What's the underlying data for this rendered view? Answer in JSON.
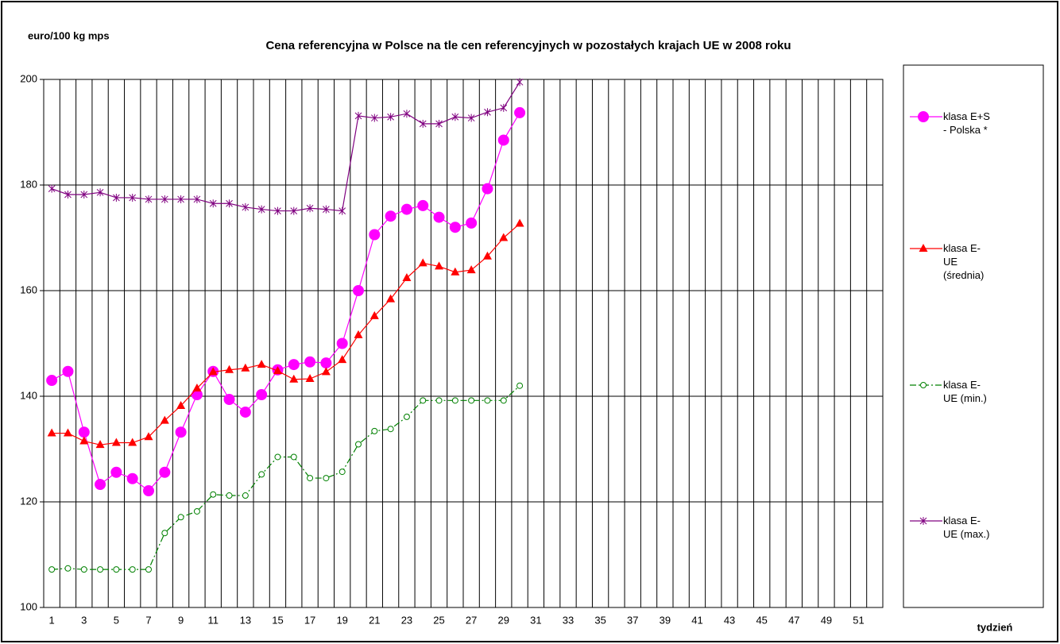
{
  "chart_data": {
    "type": "line",
    "title": "Cena referencyjna w Polsce na tle cen referencyjnych w pozostałych krajach UE w 2008 roku",
    "y_label": "euro/100 kg mps",
    "x_label": "tydzień",
    "categories": [
      1,
      null,
      3,
      null,
      5,
      null,
      7,
      null,
      9,
      null,
      11,
      null,
      13,
      null,
      15,
      null,
      17,
      null,
      19,
      null,
      21,
      null,
      23,
      null,
      25,
      null,
      27,
      null,
      29,
      null,
      31,
      null,
      33,
      null,
      35,
      null,
      37,
      null,
      39,
      null,
      41,
      null,
      43,
      null,
      45,
      null,
      47,
      null,
      49,
      null,
      51,
      null
    ],
    "ylim": [
      100,
      200
    ],
    "yticks": [
      100,
      120,
      140,
      160,
      180,
      200
    ],
    "grid": true,
    "legend": "right",
    "series": [
      {
        "name": "klasa E+S - Polska *",
        "color": "#ff00ff",
        "marker": "circle",
        "values": [
          143,
          144.7,
          133.2,
          123.3,
          125.6,
          124.4,
          122.1,
          125.6,
          133.2,
          140.3,
          144.7,
          139.4,
          137,
          140.3,
          145,
          146,
          146.5,
          146.3,
          150,
          160,
          170.6,
          174.1,
          175.4,
          176.1,
          173.9,
          172,
          172.8,
          179.3,
          188.5,
          193.7,
          null,
          null,
          null,
          null,
          null,
          null,
          null,
          null,
          null,
          null,
          null,
          null,
          null,
          null,
          null,
          null,
          null,
          null,
          null,
          null,
          null,
          null
        ]
      },
      {
        "name": "klasa E- UE (średnia)",
        "color": "#ff0000",
        "marker": "triangle",
        "values": [
          133,
          133,
          131.5,
          130.8,
          131.2,
          131.2,
          132.3,
          135.4,
          138.2,
          141.5,
          144.6,
          145,
          145.3,
          146,
          144.8,
          143.2,
          143.3,
          144.6,
          146.9,
          151.6,
          155.2,
          158.4,
          162.4,
          165.2,
          164.6,
          163.5,
          163.9,
          166.5,
          170,
          172.7,
          null,
          null,
          null,
          null,
          null,
          null,
          null,
          null,
          null,
          null,
          null,
          null,
          null,
          null,
          null,
          null,
          null,
          null,
          null,
          null,
          null,
          null
        ]
      },
      {
        "name": "klasa E- UE (min.)",
        "color": "#008000",
        "marker": "open-circle",
        "dash": "dash-dot",
        "values": [
          107.2,
          107.4,
          107.2,
          107.2,
          107.2,
          107.2,
          107.2,
          114.1,
          117.1,
          118.2,
          121.4,
          121.2,
          121.2,
          125.2,
          128.5,
          128.5,
          124.5,
          124.5,
          125.7,
          130.9,
          133.4,
          133.8,
          136.1,
          139.2,
          139.2,
          139.2,
          139.2,
          139.2,
          139.2,
          142,
          null,
          null,
          null,
          null,
          null,
          null,
          null,
          null,
          null,
          null,
          null,
          null,
          null,
          null,
          null,
          null,
          null,
          null,
          null,
          null,
          null,
          null
        ]
      },
      {
        "name": "klasa E- UE (max.)",
        "color": "#800080",
        "marker": "star",
        "values": [
          179.3,
          178.2,
          178.2,
          178.6,
          177.6,
          177.6,
          177.3,
          177.3,
          177.3,
          177.3,
          176.5,
          176.5,
          175.8,
          175.4,
          175.1,
          175.1,
          175.6,
          175.4,
          175.1,
          193.1,
          192.7,
          192.9,
          193.5,
          191.6,
          191.6,
          192.9,
          192.7,
          193.8,
          194.6,
          199.5,
          null,
          null,
          null,
          null,
          null,
          null,
          null,
          null,
          null,
          null,
          null,
          null,
          null,
          null,
          null,
          null,
          null,
          null,
          null,
          null,
          null,
          null
        ]
      }
    ]
  }
}
